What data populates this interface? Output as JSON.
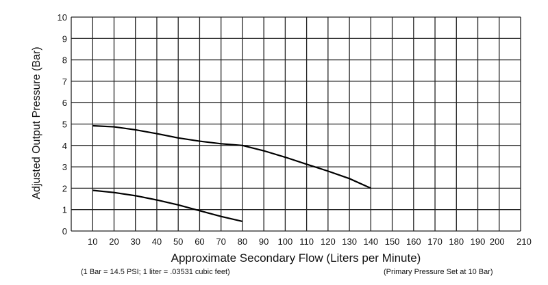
{
  "chart_data": {
    "type": "line",
    "title": "",
    "xlabel": "Approximate Secondary Flow (Liters per Minute)",
    "ylabel": "Adjusted Output Pressure (Bar)",
    "xlim": [
      0,
      210
    ],
    "ylim": [
      0,
      10
    ],
    "grid": true,
    "x_ticks": [
      "10",
      "20",
      "30",
      "40",
      "50",
      "60",
      "70",
      "80",
      "90",
      "100",
      "110",
      "120",
      "130",
      "140",
      "150",
      "160",
      "170",
      "180",
      "190",
      "200",
      "210"
    ],
    "y_ticks": [
      "0",
      "1",
      "2",
      "3",
      "4",
      "5",
      "6",
      "7",
      "8",
      "9",
      "10"
    ],
    "series": [
      {
        "name": "upper curve",
        "x": [
          10,
          20,
          30,
          40,
          50,
          60,
          70,
          80,
          90,
          100,
          110,
          120,
          130,
          140
        ],
        "y": [
          4.92,
          4.87,
          4.73,
          4.55,
          4.35,
          4.2,
          4.08,
          4.0,
          3.75,
          3.45,
          3.12,
          2.8,
          2.45,
          2.0
        ]
      },
      {
        "name": "lower curve",
        "x": [
          10,
          20,
          30,
          40,
          50,
          60,
          70,
          80
        ],
        "y": [
          1.9,
          1.8,
          1.65,
          1.45,
          1.22,
          0.95,
          0.68,
          0.45
        ]
      }
    ],
    "notes": {
      "left": "(1 Bar = 14.5 PSI; 1 liter = .03531 cubic feet)",
      "right": "(Primary Pressure Set at 10 Bar)"
    }
  }
}
